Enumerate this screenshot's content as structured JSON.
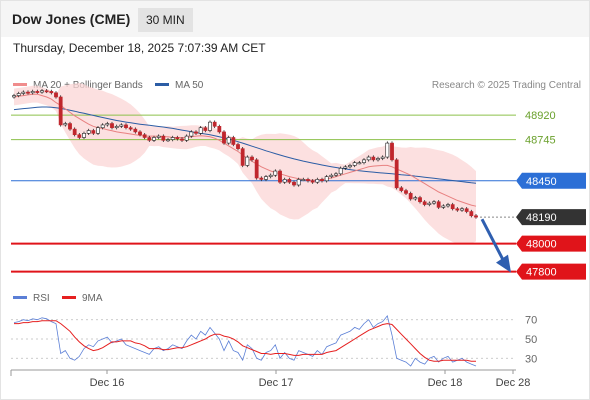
{
  "header": {
    "title": "Dow Jones (CME)",
    "interval": "30 MIN",
    "datetime": "Thursday, December 18, 2025 7:07:39 AM CET"
  },
  "legend": {
    "ma20": {
      "label": "MA 20 + Bollinger Bands",
      "color": "#f08c8c"
    },
    "ma50": {
      "label": "MA 50",
      "color": "#2c5da5"
    },
    "credit": "Research © 2025 Trading Central"
  },
  "rsi_legend": {
    "rsi": {
      "label": "RSI",
      "color": "#5b7fd6"
    },
    "ma9": {
      "label": "9MA",
      "color": "#e62020"
    }
  },
  "chart_data": [
    {
      "type": "candlestick",
      "title": "Dow Jones (CME) 30 MIN",
      "x_ticks": [
        "Dec 16",
        "Dec 17",
        "Dec 18",
        "Dec 28"
      ],
      "ylim": [
        47740,
        49100
      ],
      "levels": [
        {
          "value": 48920,
          "label": "48920",
          "kind": "resistance",
          "color": "#8cc04a"
        },
        {
          "value": 48745,
          "label": "48745",
          "kind": "resistance",
          "color": "#8cc04a"
        },
        {
          "value": 48450,
          "label": "48450",
          "kind": "pivot",
          "color": "#2c6fd6"
        },
        {
          "value": 48190,
          "label": "48190",
          "kind": "last",
          "color": "#333333"
        },
        {
          "value": 48000,
          "label": "48000",
          "kind": "support",
          "color": "#e0141a"
        },
        {
          "value": 47800,
          "label": "47800",
          "kind": "support",
          "color": "#e0141a"
        }
      ],
      "close": [
        49060,
        49075,
        49085,
        49080,
        49090,
        49085,
        49095,
        49090,
        49080,
        49050,
        48850,
        48860,
        48820,
        48780,
        48760,
        48790,
        48810,
        48790,
        48830,
        48850,
        48860,
        48830,
        48840,
        48850,
        48830,
        48820,
        48800,
        48780,
        48760,
        48740,
        48760,
        48770,
        48740,
        48745,
        48760,
        48750,
        48740,
        48770,
        48800,
        48790,
        48830,
        48810,
        48870,
        48840,
        48800,
        48720,
        48760,
        48710,
        48680,
        48560,
        48620,
        48600,
        48470,
        48460,
        48480,
        48490,
        48520,
        48440,
        48460,
        48440,
        48420,
        48460,
        48460,
        48450,
        48440,
        48460,
        48450,
        48480,
        48490,
        48500,
        48540,
        48550,
        48560,
        48580,
        48580,
        48600,
        48620,
        48600,
        48610,
        48620,
        48720,
        48600,
        48400,
        48380,
        48360,
        48320,
        48330,
        48300,
        48280,
        48290,
        48300,
        48260,
        48270,
        48280,
        48250,
        48240,
        48250,
        48230,
        48200,
        48190
      ],
      "ma20": [
        49050,
        49055,
        49060,
        49065,
        49070,
        49070,
        49060,
        49050,
        49035,
        49010,
        48990,
        48965,
        48940,
        48915,
        48895,
        48875,
        48855,
        48840,
        48830,
        48825,
        48815,
        48808,
        48800,
        48795,
        48790,
        48785,
        48780,
        48775,
        48770,
        48770,
        48770,
        48768,
        48765,
        48765,
        48760,
        48760,
        48760,
        48760,
        48765,
        48770,
        48772,
        48770,
        48765,
        48755,
        48740,
        48720,
        48700,
        48680,
        48660,
        48635,
        48610,
        48590,
        48570,
        48550,
        48535,
        48520,
        48510,
        48500,
        48490,
        48480,
        48472,
        48465,
        48460,
        48455,
        48455,
        48455,
        48460,
        48465,
        48470,
        48480,
        48490,
        48500,
        48510,
        48520,
        48530,
        48540,
        48550,
        48555,
        48558,
        48560,
        48560,
        48550,
        48535,
        48520,
        48505,
        48490,
        48470,
        48450,
        48430,
        48410,
        48390,
        48370,
        48355,
        48340,
        48325,
        48310,
        48298,
        48287,
        48276,
        48268
      ],
      "ma50": [
        48960,
        48963,
        48967,
        48970,
        48973,
        48976,
        48978,
        48978,
        48976,
        48973,
        48968,
        48962,
        48955,
        48948,
        48940,
        48933,
        48925,
        48918,
        48910,
        48903,
        48896,
        48889,
        48882,
        48876,
        48870,
        48865,
        48860,
        48855,
        48851,
        48847,
        48843,
        48839,
        48835,
        48830,
        48825,
        48819,
        48813,
        48807,
        48801,
        48795,
        48790,
        48785,
        48779,
        48773,
        48766,
        48758,
        48749,
        48740,
        48730,
        48720,
        48709,
        48698,
        48687,
        48676,
        48665,
        48655,
        48645,
        48635,
        48625,
        48616,
        48607,
        48599,
        48591,
        48584,
        48577,
        48570,
        48563,
        48557,
        48551,
        48545,
        48540,
        48535,
        48530,
        48526,
        48522,
        48518,
        48515,
        48512,
        48509,
        48506,
        48503,
        48500,
        48497,
        48494,
        48491,
        48488,
        48484,
        48480,
        48476,
        48472,
        48468,
        48464,
        48460,
        48456,
        48452,
        48448,
        48444,
        48440,
        48436,
        48432
      ],
      "rsi": [
        67,
        68,
        70,
        69,
        71,
        70,
        72,
        71,
        68,
        66,
        35,
        38,
        30,
        28,
        32,
        40,
        44,
        42,
        48,
        50,
        52,
        46,
        48,
        50,
        44,
        42,
        40,
        38,
        36,
        34,
        40,
        42,
        38,
        40,
        44,
        42,
        40,
        48,
        54,
        50,
        58,
        54,
        62,
        56,
        50,
        38,
        48,
        38,
        36,
        28,
        44,
        40,
        30,
        28,
        36,
        38,
        44,
        30,
        36,
        30,
        28,
        38,
        36,
        34,
        32,
        38,
        34,
        42,
        44,
        46,
        54,
        56,
        58,
        62,
        60,
        66,
        70,
        62,
        66,
        68,
        74,
        54,
        30,
        28,
        26,
        22,
        30,
        26,
        24,
        30,
        32,
        26,
        30,
        32,
        26,
        28,
        30,
        26,
        24,
        22
      ],
      "rsi_ma9": [
        66,
        66,
        67,
        67,
        68,
        68,
        69,
        69,
        69,
        69,
        66,
        62,
        58,
        52,
        47,
        43,
        40,
        38,
        39,
        41,
        44,
        47,
        47,
        48,
        48,
        48,
        46,
        45,
        43,
        40,
        40,
        40,
        39,
        39,
        40,
        41,
        41,
        42,
        44,
        46,
        48,
        50,
        53,
        55,
        55,
        53,
        52,
        50,
        47,
        43,
        41,
        39,
        37,
        35,
        35,
        34,
        35,
        35,
        35,
        34,
        33,
        33,
        34,
        34,
        34,
        34,
        34,
        36,
        37,
        38,
        41,
        44,
        47,
        50,
        53,
        56,
        59,
        61,
        63,
        65,
        66,
        65,
        60,
        55,
        50,
        45,
        40,
        35,
        31,
        28,
        27,
        27,
        28,
        28,
        28,
        28,
        28,
        28,
        27,
        27
      ],
      "ma_period": 20,
      "ma50_period": 50
    },
    {
      "type": "line",
      "title": "RSI",
      "ylim": [
        22,
        78
      ],
      "y_ticks": [
        "70",
        "50",
        "30"
      ],
      "y_tick_values": [
        70,
        50,
        30
      ]
    }
  ]
}
